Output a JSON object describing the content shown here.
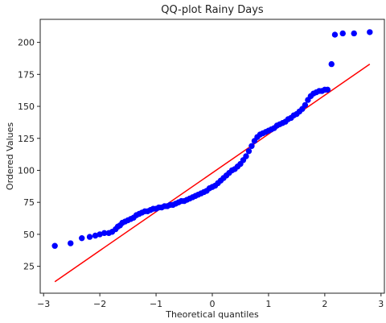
{
  "chart_data": {
    "type": "scatter",
    "title": "QQ-plot Rainy Days",
    "xlabel": "Theoretical quantiles",
    "ylabel": "Ordered Values",
    "xlim": [
      -3.06,
      3.06
    ],
    "ylim": [
      4,
      218
    ],
    "xticks": [
      -3,
      -2,
      -1,
      0,
      1,
      2,
      3
    ],
    "yticks": [
      25,
      50,
      75,
      100,
      125,
      150,
      175,
      200
    ],
    "xtick_labels": [
      "−3",
      "−2",
      "−1",
      "0",
      "1",
      "2",
      "3"
    ],
    "ytick_labels": [
      "25",
      "50",
      "75",
      "100",
      "125",
      "150",
      "175",
      "200"
    ],
    "grid": false,
    "point_color": "#0000ff",
    "line_color": "#ff0000",
    "series": [
      {
        "kind": "points",
        "points": [
          [
            -2.8,
            41
          ],
          [
            -2.52,
            43
          ],
          [
            -2.32,
            47
          ],
          [
            -2.18,
            48
          ],
          [
            -2.08,
            49
          ],
          [
            -2.0,
            50
          ],
          [
            -1.92,
            51
          ],
          [
            -1.84,
            51
          ],
          [
            -1.78,
            52
          ],
          [
            -1.72,
            54
          ],
          [
            -1.68,
            56
          ],
          [
            -1.64,
            57
          ],
          [
            -1.6,
            59
          ],
          [
            -1.55,
            60
          ],
          [
            -1.5,
            61
          ],
          [
            -1.45,
            62
          ],
          [
            -1.4,
            63
          ],
          [
            -1.35,
            65
          ],
          [
            -1.3,
            66
          ],
          [
            -1.25,
            67
          ],
          [
            -1.2,
            68
          ],
          [
            -1.15,
            68
          ],
          [
            -1.1,
            69
          ],
          [
            -1.05,
            70
          ],
          [
            -1.0,
            70
          ],
          [
            -0.95,
            71
          ],
          [
            -0.9,
            71
          ],
          [
            -0.85,
            72
          ],
          [
            -0.8,
            72
          ],
          [
            -0.75,
            73
          ],
          [
            -0.7,
            73
          ],
          [
            -0.65,
            74
          ],
          [
            -0.6,
            75
          ],
          [
            -0.55,
            76
          ],
          [
            -0.5,
            76
          ],
          [
            -0.45,
            77
          ],
          [
            -0.4,
            78
          ],
          [
            -0.35,
            79
          ],
          [
            -0.3,
            80
          ],
          [
            -0.25,
            81
          ],
          [
            -0.2,
            82
          ],
          [
            -0.15,
            83
          ],
          [
            -0.1,
            84
          ],
          [
            -0.05,
            86
          ],
          [
            0.0,
            87
          ],
          [
            0.05,
            88
          ],
          [
            0.1,
            90
          ],
          [
            0.15,
            92
          ],
          [
            0.2,
            94
          ],
          [
            0.25,
            96
          ],
          [
            0.3,
            98
          ],
          [
            0.35,
            100
          ],
          [
            0.4,
            101
          ],
          [
            0.45,
            103
          ],
          [
            0.5,
            105
          ],
          [
            0.55,
            108
          ],
          [
            0.6,
            111
          ],
          [
            0.65,
            115
          ],
          [
            0.7,
            119
          ],
          [
            0.75,
            123
          ],
          [
            0.8,
            126
          ],
          [
            0.85,
            128
          ],
          [
            0.9,
            129
          ],
          [
            0.95,
            130
          ],
          [
            1.0,
            131
          ],
          [
            1.05,
            132
          ],
          [
            1.1,
            133
          ],
          [
            1.15,
            135
          ],
          [
            1.2,
            136
          ],
          [
            1.25,
            137
          ],
          [
            1.3,
            138
          ],
          [
            1.35,
            140
          ],
          [
            1.4,
            141
          ],
          [
            1.45,
            143
          ],
          [
            1.5,
            144
          ],
          [
            1.55,
            146
          ],
          [
            1.6,
            148
          ],
          [
            1.65,
            151
          ],
          [
            1.7,
            155
          ],
          [
            1.75,
            158
          ],
          [
            1.8,
            160
          ],
          [
            1.85,
            161
          ],
          [
            1.9,
            162
          ],
          [
            1.95,
            162
          ],
          [
            2.0,
            163
          ],
          [
            2.05,
            163
          ],
          [
            2.12,
            183
          ],
          [
            2.18,
            206
          ],
          [
            2.32,
            207
          ],
          [
            2.52,
            207
          ],
          [
            2.8,
            208
          ]
        ]
      },
      {
        "kind": "fit-line",
        "x": [
          -2.8,
          2.8
        ],
        "y": [
          13,
          183
        ]
      }
    ]
  }
}
